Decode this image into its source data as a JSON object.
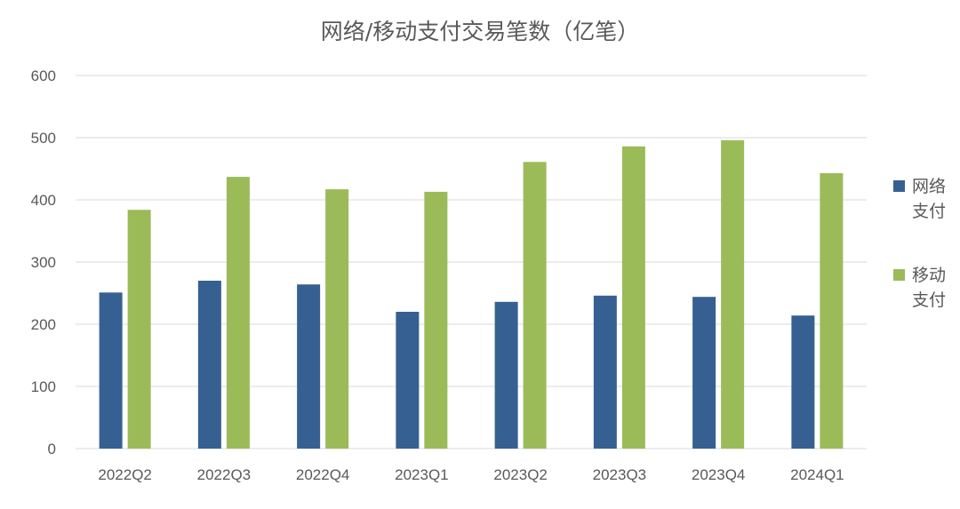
{
  "chart_data": {
    "type": "bar",
    "title": "网络/移动支付交易笔数（亿笔）",
    "categories": [
      "2022Q2",
      "2022Q3",
      "2022Q4",
      "2023Q1",
      "2023Q2",
      "2023Q3",
      "2023Q4",
      "2024Q1"
    ],
    "series": [
      {
        "name": "网络支付",
        "color": "#376092",
        "values": [
          251,
          270,
          264,
          220,
          236,
          246,
          244,
          214
        ]
      },
      {
        "name": "移动支付",
        "color": "#9BBB59",
        "values": [
          384,
          437,
          417,
          413,
          461,
          486,
          496,
          443
        ]
      }
    ],
    "ylim": [
      0,
      600
    ],
    "yticks": [
      0,
      100,
      200,
      300,
      400,
      500,
      600
    ],
    "grid": true,
    "legend": "right"
  }
}
